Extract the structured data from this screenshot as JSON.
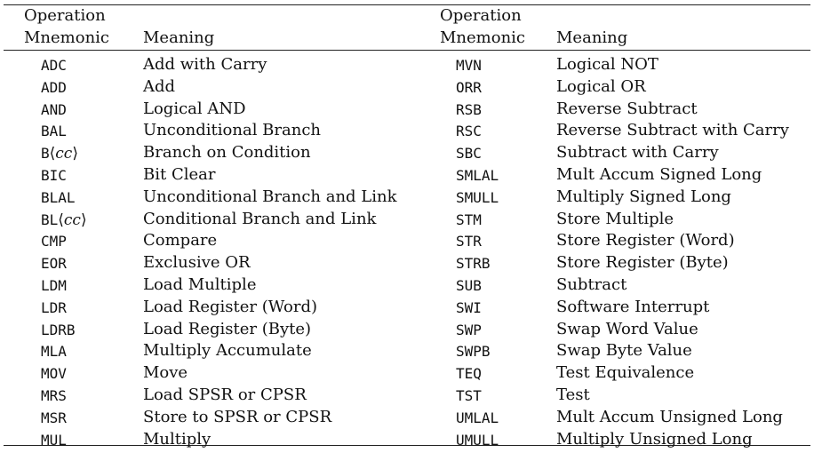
{
  "table": {
    "header": {
      "left_mnemonic_line1": "Operation",
      "left_mnemonic_line2": "Mnemonic",
      "left_meaning": "Meaning",
      "right_mnemonic_line1": "Operation",
      "right_mnemonic_line2": "Mnemonic",
      "right_meaning": "Meaning"
    },
    "left_rows": [
      {
        "mnemonic": "ADC",
        "meaning": "Add with Carry"
      },
      {
        "mnemonic": "ADD",
        "meaning": "Add"
      },
      {
        "mnemonic": "AND",
        "meaning": "Logical AND"
      },
      {
        "mnemonic": "BAL",
        "meaning": "Unconditional Branch"
      },
      {
        "mnemonic_prefix": "B",
        "mnemonic_open": "⟨",
        "mnemonic_cc": "cc",
        "mnemonic_close": "⟩",
        "meaning": "Branch on Condition"
      },
      {
        "mnemonic": "BIC",
        "meaning": "Bit Clear"
      },
      {
        "mnemonic": "BLAL",
        "meaning": "Unconditional Branch and Link"
      },
      {
        "mnemonic_prefix": "BL",
        "mnemonic_open": "⟨",
        "mnemonic_cc": "cc",
        "mnemonic_close": "⟩",
        "meaning": "Conditional Branch and Link"
      },
      {
        "mnemonic": "CMP",
        "meaning": "Compare"
      },
      {
        "mnemonic": "EOR",
        "meaning": "Exclusive OR"
      },
      {
        "mnemonic": "LDM",
        "meaning": "Load Multiple"
      },
      {
        "mnemonic": "LDR",
        "meaning": "Load Register (Word)"
      },
      {
        "mnemonic": "LDRB",
        "meaning": "Load Register (Byte)"
      },
      {
        "mnemonic": "MLA",
        "meaning": "Multiply Accumulate"
      },
      {
        "mnemonic": "MOV",
        "meaning": "Move"
      },
      {
        "mnemonic": "MRS",
        "meaning": "Load SPSR or CPSR"
      },
      {
        "mnemonic": "MSR",
        "meaning": "Store to SPSR or CPSR"
      },
      {
        "mnemonic": "MUL",
        "meaning": "Multiply"
      }
    ],
    "right_rows": [
      {
        "mnemonic": "MVN",
        "meaning": "Logical NOT"
      },
      {
        "mnemonic": "ORR",
        "meaning": "Logical OR"
      },
      {
        "mnemonic": "RSB",
        "meaning": "Reverse Subtract"
      },
      {
        "mnemonic": "RSC",
        "meaning": "Reverse Subtract with Carry"
      },
      {
        "mnemonic": "SBC",
        "meaning": "Subtract with Carry"
      },
      {
        "mnemonic": "SMLAL",
        "meaning": "Mult Accum Signed Long"
      },
      {
        "mnemonic": "SMULL",
        "meaning": "Multiply Signed Long"
      },
      {
        "mnemonic": "STM",
        "meaning": "Store Multiple"
      },
      {
        "mnemonic": "STR",
        "meaning": "Store Register (Word)"
      },
      {
        "mnemonic": "STRB",
        "meaning": "Store Register (Byte)"
      },
      {
        "mnemonic": "SUB",
        "meaning": "Subtract"
      },
      {
        "mnemonic": "SWI",
        "meaning": "Software Interrupt"
      },
      {
        "mnemonic": "SWP",
        "meaning": "Swap Word Value"
      },
      {
        "mnemonic": "SWPB",
        "meaning": "Swap Byte Value"
      },
      {
        "mnemonic": "TEQ",
        "meaning": "Test Equivalence"
      },
      {
        "mnemonic": "TST",
        "meaning": "Test"
      },
      {
        "mnemonic": "UMLAL",
        "meaning": "Mult Accum Unsigned Long"
      },
      {
        "mnemonic": "UMULL",
        "meaning": "Multiply Unsigned Long"
      }
    ]
  }
}
